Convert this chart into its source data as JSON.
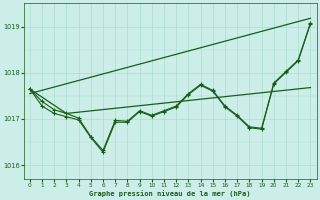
{
  "background_color": "#cceee8",
  "grid_color": "#aaddcc",
  "line_color": "#1a5c1a",
  "xlabel": "Graphe pression niveau de la mer (hPa)",
  "xlim": [
    -0.5,
    23.5
  ],
  "ylim": [
    1015.7,
    1019.5
  ],
  "yticks": [
    1016,
    1017,
    1018,
    1019
  ],
  "xticks": [
    0,
    1,
    2,
    3,
    4,
    5,
    6,
    7,
    8,
    9,
    10,
    11,
    12,
    13,
    14,
    15,
    16,
    17,
    18,
    19,
    20,
    21,
    22,
    23
  ],
  "series1": [
    1017.65,
    1017.38,
    1017.2,
    1017.12,
    1017.02,
    1016.62,
    1016.32,
    1016.97,
    1016.95,
    1017.18,
    1017.08,
    1017.18,
    1017.28,
    1017.55,
    1017.75,
    1017.62,
    1017.28,
    1017.08,
    1016.83,
    1016.8,
    1017.78,
    1018.03,
    1018.28,
    1019.08
  ],
  "series2": [
    1017.65,
    1017.28,
    1017.12,
    1017.05,
    1016.98,
    1016.6,
    1016.28,
    1016.93,
    1016.93,
    1017.16,
    1017.06,
    1017.16,
    1017.26,
    1017.53,
    1017.73,
    1017.6,
    1017.26,
    1017.06,
    1016.81,
    1016.78,
    1017.76,
    1018.01,
    1018.26,
    1019.06
  ],
  "trend_x": [
    0,
    23
  ],
  "trend_y": [
    1017.55,
    1019.18
  ],
  "trend2_x": [
    0,
    3,
    23
  ],
  "trend2_y": [
    1017.65,
    1017.12,
    1017.68
  ]
}
